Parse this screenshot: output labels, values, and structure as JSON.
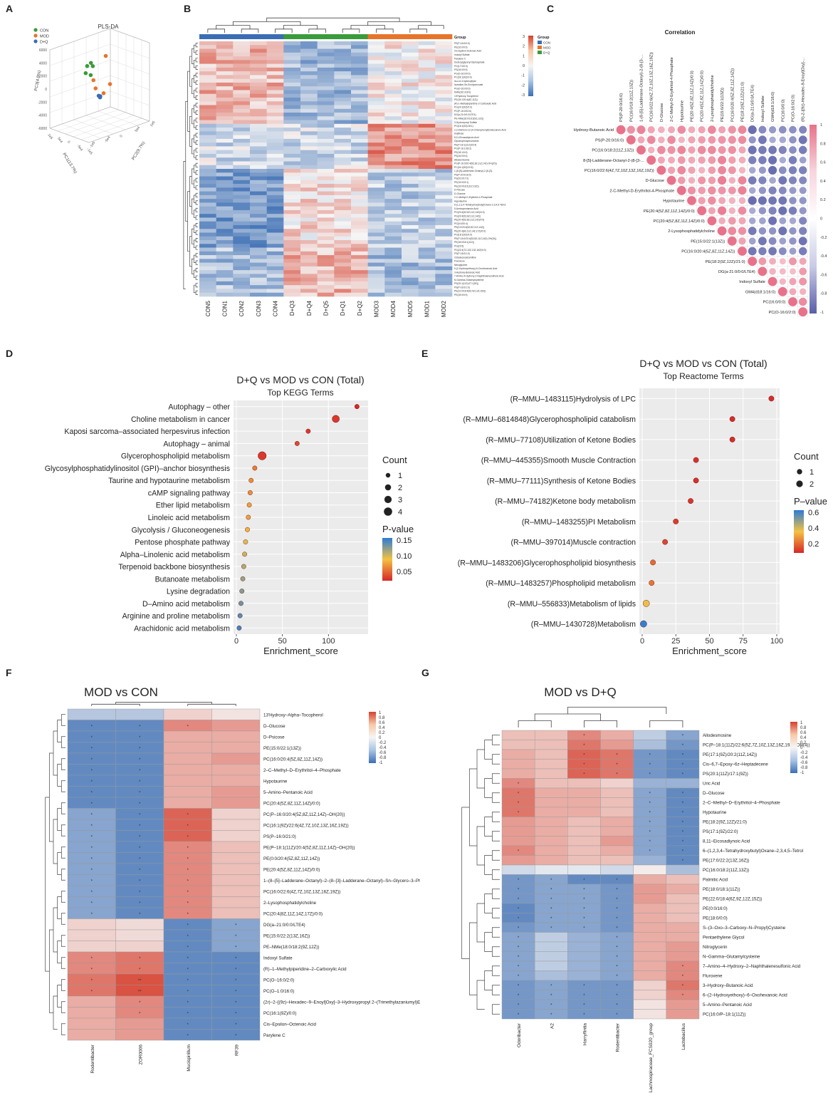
{
  "colors": {
    "blue": "#3a6db5",
    "orange": "#e8742a",
    "green": "#3a9b3a",
    "heat_lo": "#3d6fb4",
    "heat_mid": "#f5f5f5",
    "heat_hi": "#d6402e",
    "corr_pos": "#e8728a",
    "corr_neg": "#5a5fa8",
    "pv_lo": "#d62728",
    "pv_mid": "#f5c242",
    "pv_hi": "#2b7bd6"
  },
  "panel_letters": [
    "A",
    "B",
    "C",
    "D",
    "E",
    "F",
    "G"
  ],
  "panelA": {
    "title": "PLS-DA",
    "legend": [
      {
        "label": "CON",
        "color": "#3a9b3a"
      },
      {
        "label": "MOD",
        "color": "#e8742a"
      },
      {
        "label": "D+Q",
        "color": "#3a6db5"
      }
    ],
    "zlabel": "PC3(4.8%)",
    "xlabel": "PC1(13.7%)",
    "ylabel": "PC2(9.7%)",
    "zticks": [
      "6000",
      "4000",
      "2000",
      "0",
      "-2000",
      "-4000",
      "-6000"
    ],
    "xticks": [
      "-1e5",
      "-5e4",
      "0",
      "5e4",
      "1e5"
    ],
    "yticks": [
      "-1e5",
      "-5e4",
      "0",
      "5e4",
      "1e5"
    ],
    "points": [
      {
        "group": "CON",
        "x": 0.8,
        "y": 0.55,
        "z": 0.72
      },
      {
        "group": "CON",
        "x": 0.78,
        "y": 0.45,
        "z": 0.62
      },
      {
        "group": "CON",
        "x": 0.83,
        "y": 0.6,
        "z": 0.66
      },
      {
        "group": "CON",
        "x": 0.76,
        "y": 0.52,
        "z": 0.58
      },
      {
        "group": "CON",
        "x": 0.82,
        "y": 0.5,
        "z": 0.69
      },
      {
        "group": "MOD",
        "x": 0.35,
        "y": 0.3,
        "z": 0.65
      },
      {
        "group": "MOD",
        "x": 0.5,
        "y": 0.6,
        "z": 0.85
      },
      {
        "group": "MOD",
        "x": 0.4,
        "y": 0.5,
        "z": 0.42
      },
      {
        "group": "MOD",
        "x": 0.7,
        "y": 0.8,
        "z": 0.4
      },
      {
        "group": "MOD",
        "x": 0.45,
        "y": 0.4,
        "z": 0.5
      },
      {
        "group": "D+Q",
        "x": 0.5,
        "y": 0.5,
        "z": 0.36
      },
      {
        "group": "D+Q",
        "x": 0.52,
        "y": 0.52,
        "z": 0.35
      },
      {
        "group": "D+Q",
        "x": 0.51,
        "y": 0.49,
        "z": 0.37
      },
      {
        "group": "D+Q",
        "x": 0.49,
        "y": 0.5,
        "z": 0.35
      },
      {
        "group": "D+Q",
        "x": 0.5,
        "y": 0.51,
        "z": 0.36
      }
    ]
  },
  "panelB": {
    "group_label": "Group",
    "legend_groups": [
      {
        "label": "CON",
        "color": "#3a6db5"
      },
      {
        "label": "MOD",
        "color": "#e8742a"
      },
      {
        "label": "D+Q",
        "color": "#3a9b3a"
      }
    ],
    "scale_ticks": [
      "3",
      "2",
      "1",
      "0",
      "-1",
      "-2",
      "-3"
    ],
    "samples": [
      "CON5",
      "CON1",
      "CON2",
      "CON3",
      "CON4",
      "D+Q3",
      "D+Q4",
      "D+Q5",
      "D+Q1",
      "D+Q2",
      "MOD3",
      "MOD4",
      "MOD5",
      "MOD1",
      "MOD2"
    ],
    "sample_groups": [
      "CON",
      "CON",
      "CON",
      "CON",
      "CON",
      "D+Q",
      "D+Q",
      "D+Q",
      "D+Q",
      "D+Q",
      "MOD",
      "MOD",
      "MOD",
      "MOD",
      "MOD"
    ],
    "rows": [
      "PE(P-16:0/0:0)",
      "PE(16:0/0:0)",
      "Cis-Epsilon-Octenoic Acid",
      "Indoxyl Sulfate",
      "Parylene C",
      "Dodecylglyceryl Diphosphate",
      "PG(17:0/0:0)",
      "PS(16:0/0:0)",
      "PG(O-16:0/0:0)",
      "PC(18:1(9Z)/0:0)",
      "Iso-Lit-3-hydroxylipid",
      "Isovaline-Se-Enciopercoate",
      "PG(O-16:0/0:0)",
      "DMA(18:1/18:0)",
      "13'Hydroxy-Tocopherol",
      "PE(18:1/20:4(8Z,11Z))",
      "(R)-1-Methylpiperidine-2-Carboxylic Acid",
      "PG(20:1(9Z)/0:0)",
      "PG(P-16:0/22:6)",
      "DG(a-21:0/0:0/LTE4)",
      "PE-NMe(18:0/18:2(9Z,12Z))",
      "3-Hydroxyoxyl Sulfate",
      "PG(16:1(9Z)/18:1)",
      "2,2-Dichloro-12-(4-Chlorophenyl)Dodecanoic Acid",
      "Kojibiose",
      "8,11-Eicosadiynoic Acid",
      "Glycerophosphocholine",
      "PE(P-18:1(11Z)/20:4)",
      "PG(P-16:1/18:2)",
      "PE(18:1/0:0)",
      "PS(16:0/0:0)",
      "Allodesmosine",
      "PG(P-16:0/20:4(5Z,8Z,11Z,14Z)-OH(20))",
      "PC(16:1(9Z)/22:6)",
      "1-(8-[5]-Ladderane-Octanyl)-2-(8-[3]-",
      "PS(P-20:0/16:0)",
      "PS(20:0/17:0)",
      "PE(15:0/22:1)",
      "PE(16:0/18:2(11Z,13Z))",
      "D-Psicose",
      "D-Glucose",
      "2-C-Methyl-D-Erythritol-4-Phosphate",
      "Hypotaurine",
      "6-(1,2,3,4-Tetrahydroxybutyl)Oxane-2,3,4,5-Tetrol",
      "5-Aminopentanoic Acid",
      "PG(20:4(5Z,8Z,11Z,14Z)/0:0)",
      "PG(20:4(5Z,8Z,11Z,14Z))",
      "PE(20:4(5Z,8Z,11Z,14Z)/0:0)",
      "PG(0:0/20:4)",
      "PE(0:0/20:4(5Z,8Z,11Z,14Z))",
      "PE(20:4(8Z,11Z,14Z,17Z)/0:0)",
      "PG(18:1(9Z)/0:0)",
      "PE(P-16:0/20:4(5Z,8Z,11Z,14Z)-OH(20))",
      "PE(18:0/18:1(11Z))",
      "PG(22:6)",
      "PG(22:4(7Z,10Z,13Z,16Z)/0:0)",
      "PS(P-18:0/1:0)",
      "Octadecenylcarnitine",
      "Fluroxene",
      "Nitroglycerin",
      "5-(2-Hydroxyethoxy)-6-Oxohexanoic Acid",
      "3-Hydroxy-Butanoic Acid",
      "7-Amino-4-Hydroxy-2-Naphthalenesulfonic Acid",
      "N-Gamma-Glutamylcysteine",
      "PS(20:1(11Z)/17:1(9Z))",
      "PS(P-18:0/1:0)",
      "PE(22:0/18:4(6Z,9Z,12Z,15Z))",
      "PE(18:0/0:0)"
    ]
  },
  "panelC": {
    "title": "Correlation",
    "labels": [
      "Hydroxy-Butanoic Acid",
      "PS(P-20:0/16:0)",
      "PC(16:0/18:2(11Z,13Z))",
      "8-[5]-Ladderane-Octanyl-2-(8-[3-...",
      "PC(16:0/22:6(4Z,7Z,10Z,13Z,16Z,19Z))",
      "D-Glucose",
      "2-C-Methyl-D-Erythritol-4-Phosphate",
      "Hypotaurine",
      "PE(20:4(5Z,8Z,11Z,14Z)/0:0)",
      "PC(20:4(5Z,8Z,11Z,14Z)/0:0)",
      "2-Lysophosphatidylcholine",
      "PE(15:0/22:1(13Z))",
      "PC(16:0/20:4(5Z,8Z,11Z,14Z))",
      "PE(18:2(9Z,12Z)/21:0)",
      "DG(a-21:0/0:0/LTE4)",
      "Indoxyl Sulfate",
      "GM4(d18:1/16:0)",
      "PC(16:0/0:0)",
      "PC(O-16:0/2:0)"
    ],
    "top_labels": [
      "PS(P-20:0/16:0)",
      "PC(16:0/18:2(11Z,13Z))",
      "1-(8-[5]-Ladderane-Octanyl)-2-(8-[3-...",
      "PC(16:0/22:6(4Z,7Z,10Z,13Z,16Z,19Z))",
      "D-Glucose",
      "2-C-Methyl-D-Erythritol-4-Phosphate",
      "Hypotaurine",
      "PE(20:4(5Z,8Z,11Z,14Z)/0:0)",
      "PC(20:4(5Z,8Z,11Z,14Z)/0:0)",
      "2-Lysophosphatidylcholine",
      "PE(15:0/22:1(13Z))",
      "PC(16:0/20:4(5Z,8Z,11Z,14Z))",
      "PE(18:2(9Z,12Z)/21:0)",
      "DG(a-21:0/0:0/LTE4)",
      "Indoxyl Sulfate",
      "GM4(d18:1/16:0)",
      "PC(16:0/0:0)",
      "PC(O-16:0/2:0)",
      "(R)-2-[(9z)-Hexadec-9-Enoyl]Oxy]-..."
    ],
    "scale_ticks": [
      "1",
      "0.8",
      "0.6",
      "0.4",
      "0.2",
      "0",
      "-0.2",
      "-0.4",
      "-0.6",
      "-0.8",
      "-1"
    ]
  },
  "panelD": {
    "title": "D+Q vs MOD vs CON (Total)",
    "subtitle": "Top KEGG Terms",
    "xlabel": "Enrichment_score",
    "xticks": [
      0,
      50,
      100
    ],
    "xmax": 140,
    "legend_count_title": "Count",
    "count_levels": [
      1,
      2,
      3,
      4
    ],
    "legend_p_title": "P-value",
    "p_ticks": [
      "0.15",
      "0.10",
      "0.05"
    ],
    "p_range": [
      0.01,
      0.19
    ],
    "chart_data": {
      "type": "scatter",
      "terms": [
        "Autophagy – other",
        "Choline metabolism in cancer",
        "Kaposi sarcoma–associated herpesvirus infection",
        "Autophagy – animal",
        "Glycerophospholipid metabolism",
        "Glycosylphosphatidylinositol (GPI)–anchor biosynthesis",
        "Taurine and hypotaurine metabolism",
        "cAMP signaling pathway",
        "Ether lipid metabolism",
        "Linoleic acid metabolism",
        "Glycolysis / Gluconeogenesis",
        "Pentose phosphate pathway",
        "Alpha–Linolenic acid metabolism",
        "Terpenoid backbone biosynthesis",
        "Butanoate metabolism",
        "Lysine degradation",
        "D–Amino acid metabolism",
        "Arginine and proline metabolism",
        "Arachidonic acid metabolism"
      ],
      "enrichment": [
        131,
        108,
        78,
        66,
        28,
        20,
        16,
        15,
        14,
        13,
        12,
        10,
        9,
        8,
        7,
        6,
        5,
        4,
        3
      ],
      "count": [
        1,
        3,
        1,
        1,
        4,
        1,
        1,
        1,
        1,
        1,
        1,
        1,
        1,
        1,
        1,
        1,
        1,
        1,
        1
      ],
      "pvalue": [
        0.01,
        0.02,
        0.02,
        0.03,
        0.02,
        0.06,
        0.07,
        0.07,
        0.08,
        0.08,
        0.09,
        0.11,
        0.12,
        0.13,
        0.14,
        0.15,
        0.16,
        0.17,
        0.18
      ]
    }
  },
  "panelE": {
    "title": "D+Q vs MOD vs CON (Total)",
    "subtitle": "Top Reactome Terms",
    "xlabel": "Enrichment_score",
    "xticks": [
      0,
      25,
      50,
      75,
      100
    ],
    "xmax": 100,
    "legend_count_title": "Count",
    "count_levels": [
      1,
      2
    ],
    "legend_p_title": "P–value",
    "p_ticks": [
      "0.6",
      "0.4",
      "0.2"
    ],
    "p_range": [
      0.05,
      0.72
    ],
    "chart_data": {
      "type": "scatter",
      "terms": [
        "(R–MMU–1483115)Hydrolysis of LPC",
        "(R–MMU–6814848)Glycerophospholipid catabolism",
        "(R–MMU–77108)Utilization of Ketone Bodies",
        "(R–MMU–445355)Smooth Muscle Contraction",
        "(R–MMU–77111)Synthesis of Ketone Bodies",
        "(R–MMU–74182)Ketone body metabolism",
        "(R–MMU–1483255)PI Metabolism",
        "(R–MMU–397014)Muscle contraction",
        "(R–MMU–1483206)Glycerophospholipid biosynthesis",
        "(R–MMU–1483257)Phospholipid metabolism",
        "(R–MMU–556833)Metabolism of lipids",
        "(R–MMU–1430728)Metabolism"
      ],
      "enrichment": [
        96,
        67,
        67,
        40,
        40,
        36,
        25,
        17,
        8,
        7,
        3,
        1
      ],
      "count": [
        1,
        1,
        1,
        1,
        1,
        1,
        1,
        1,
        1,
        1,
        2,
        2
      ],
      "pvalue": [
        0.06,
        0.06,
        0.06,
        0.07,
        0.07,
        0.08,
        0.1,
        0.12,
        0.2,
        0.22,
        0.4,
        0.7
      ]
    }
  },
  "panelF": {
    "title": "MOD vs CON",
    "columns": [
      "Rodentibacter",
      "ZOR0006",
      "Mucispirillum",
      "RF39"
    ],
    "rows": [
      "13'Hydroxy–Alpha–Tocopherol",
      "D–Glucose",
      "D–Psicose",
      "PE(15:0/22:1(13Z))",
      "PC(16:0/20:4(5Z,8Z,11Z,14Z))",
      "2–C–Methyl–D–Erythritol–4–Phosphate",
      "Hypotaurine",
      "5–Amino–Pentanoic Acid",
      "PC(20:4(5Z,8Z,11Z,14Z)/0:0)",
      "PC(P–16:0/20:4(5Z,8Z,11Z,14Z)–OH(20))",
      "PC(16:1(9Z)/22:6(4Z,7Z,10Z,13Z,16Z,19Z))",
      "PS(P–16:0/21:0)",
      "PE(P–18:1(11Z)/20:4(5Z,8Z,11Z,14Z)–OH(20))",
      "PE(0:0/20:4(5Z,8Z,11Z,14Z))",
      "PE(20:4(5Z,8Z,11Z,14Z)/0:0)",
      "1–(8–[5]–Ladderane–Octanyl)–2–(8–[3]–Ladderane–Octanyl)–Sn–Glycero–3–Phosphocholine",
      "PC(16:0/22:6(4Z,7Z,10Z,13Z,16Z,19Z))",
      "2–Lysophosphatidylcholine",
      "PC(20:4(8Z,11Z,14Z,17Z)/0:0)",
      "DG(a–21:0/0:0/LTE4)",
      "PE(15:0/22:2(13Z,16Z))",
      "PE–NMe(18:0/18:2(9Z,12Z))",
      "Indoxyl Sulfate",
      "(R)–1–Methylpiperidine–2–Carboxylic Acid",
      "PC(O–16:0/2:0)",
      "PC(O–1:0/16:0)",
      "(2r)–2–[(9z)–Hexadec–9–Enoyl]Oxy]–3–Hydroxypropyl 2–(Trimethylazaniumyl)Ethyl Phosphate",
      "PC(16:1(9Z)/0:0)",
      "Cis–Epsilon–Octenoic Acid",
      "Parylene C"
    ],
    "values": [
      [
        -0.35,
        -0.35,
        0.2,
        0.1
      ],
      [
        -0.8,
        -0.8,
        0.6,
        0.5
      ],
      [
        -0.8,
        -0.8,
        0.4,
        0.4
      ],
      [
        -0.8,
        -0.8,
        0.4,
        0.4
      ],
      [
        -0.8,
        -0.8,
        0.4,
        0.5
      ],
      [
        -0.8,
        -0.8,
        0.4,
        0.4
      ],
      [
        -0.8,
        -0.8,
        0.4,
        0.4
      ],
      [
        -0.8,
        -0.8,
        0.4,
        0.5
      ],
      [
        -0.8,
        -0.8,
        0.4,
        0.5
      ],
      [
        -0.6,
        -0.8,
        0.8,
        0.2
      ],
      [
        -0.6,
        -0.8,
        0.8,
        0.2
      ],
      [
        -0.6,
        -0.8,
        0.8,
        0.2
      ],
      [
        -0.6,
        -0.8,
        0.6,
        0.3
      ],
      [
        -0.6,
        -0.8,
        0.6,
        0.3
      ],
      [
        -0.6,
        -0.8,
        0.6,
        0.3
      ],
      [
        -0.6,
        -0.8,
        0.6,
        0.3
      ],
      [
        -0.6,
        -0.8,
        0.6,
        0.3
      ],
      [
        -0.6,
        -0.8,
        0.6,
        0.3
      ],
      [
        -0.6,
        -0.8,
        0.6,
        0.3
      ],
      [
        0.2,
        0.15,
        -0.8,
        -0.6
      ],
      [
        0.2,
        0.15,
        -0.8,
        -0.6
      ],
      [
        0.2,
        0.2,
        -0.8,
        -0.6
      ],
      [
        0.6,
        0.7,
        -0.8,
        -0.8
      ],
      [
        0.6,
        0.7,
        -0.8,
        -0.8
      ],
      [
        0.7,
        0.9,
        -0.8,
        -0.8
      ],
      [
        0.7,
        0.9,
        -0.8,
        -0.8
      ],
      [
        0.4,
        0.6,
        -0.8,
        -0.8
      ],
      [
        0.4,
        0.6,
        -0.8,
        -0.8
      ],
      [
        0.4,
        0.5,
        -0.8,
        -0.8
      ],
      [
        0.4,
        0.5,
        -0.8,
        -0.8
      ]
    ],
    "scale_ticks": [
      "1",
      "0.8",
      "0.6",
      "0.4",
      "0.2",
      "0",
      "-0.2",
      "-0.4",
      "-0.6",
      "-0.8",
      "-1"
    ]
  },
  "panelG": {
    "title": "MOD vs D+Q",
    "columns": [
      "Odoribacter",
      "A2",
      "Harryflintia",
      "Rodentibacter",
      "Lachnospiraceae_FCS020_group",
      "Lactobacillus"
    ],
    "rows": [
      "Allodesmosine",
      "PC(P–18:1(11Z)/22:6(5Z,7Z,10Z,13Z,16Z,19Z)–OH(4))",
      "PE(17:1(9Z)/20:2(11Z,14Z))",
      "Cis–6,7–Epoxy–6z–Heptadecene",
      "PS(20:1(11Z)/17:1(9Z))",
      "Uric Acid",
      "D–Glucose",
      "2–C–Methyl–D–Erythritol–4–Phosphate",
      "Hypotaurine",
      "PE(18:2(9Z,12Z)/21:0)",
      "PS(17:1(9Z)/22:0)",
      "8,11–Eicosadiynoic Acid",
      "6–(1,2,3,4–Tetrahydroxybutyl)Oxane–2,3,4,5–Tetrol",
      "PE(17:0/22:2(13Z,16Z))",
      "PC(16:0/18:2(11Z,13Z))",
      "Palmitic Acid",
      "PE(18:0/18:1(11Z))",
      "PE(22:0/18:4(6Z,9Z,12Z,15Z))",
      "PE(0:0/16:0)",
      "PE(18:0/0:0)",
      "S–(3–Oxo–3–Carboxy–N–Propyl)Cysteine",
      "Pentaethylene Glycol",
      "Nitroglycerin",
      "N–Gamma–Glutamylcysteine",
      "7–Amino–4–Hydroxy–2–Naphthalenesulfonic Acid",
      "Fluroxene",
      "3–Hydroxy–Butanoic Acid",
      "6–(2–Hydroxyethoxy)–6–Oxohexanoic Acid",
      "5–Amino–Pentanoic Acid",
      "PC(16:0/P–18:1(11Z))"
    ],
    "values": [
      [
        0.3,
        0.3,
        0.6,
        0.4,
        -0.3,
        -0.6
      ],
      [
        0.3,
        0.3,
        0.7,
        0.5,
        -0.4,
        -0.7
      ],
      [
        0.4,
        0.3,
        0.8,
        0.7,
        -0.7,
        -0.8
      ],
      [
        0.4,
        0.3,
        0.8,
        0.7,
        -0.7,
        -0.8
      ],
      [
        0.4,
        0.3,
        0.8,
        0.7,
        -0.7,
        -0.8
      ],
      [
        0.6,
        0.3,
        0.3,
        0.2,
        -0.5,
        -0.5
      ],
      [
        0.7,
        0.4,
        0.4,
        0.3,
        -0.6,
        -0.8
      ],
      [
        0.7,
        0.4,
        0.4,
        0.3,
        -0.6,
        -0.8
      ],
      [
        0.7,
        0.4,
        0.4,
        0.3,
        -0.6,
        -0.8
      ],
      [
        0.5,
        0.4,
        0.3,
        0.4,
        -0.6,
        -0.8
      ],
      [
        0.5,
        0.4,
        0.3,
        0.4,
        -0.6,
        -0.8
      ],
      [
        0.5,
        0.4,
        0.3,
        0.5,
        -0.6,
        -0.8
      ],
      [
        0.6,
        0.4,
        0.3,
        0.4,
        -0.6,
        -0.8
      ],
      [
        0.5,
        0.4,
        0.3,
        0.3,
        -0.5,
        -0.8
      ],
      [
        -0.2,
        -0.1,
        -0.1,
        -0.2,
        0.05,
        -0.4
      ],
      [
        -0.7,
        -0.6,
        -0.8,
        -0.8,
        0.4,
        0.3
      ],
      [
        -0.7,
        -0.6,
        -0.6,
        -0.7,
        0.5,
        0.4
      ],
      [
        -0.7,
        -0.6,
        -0.6,
        -0.7,
        0.5,
        0.3
      ],
      [
        -0.8,
        -0.6,
        -0.6,
        -0.7,
        0.4,
        0.3
      ],
      [
        -0.8,
        -0.6,
        -0.6,
        -0.7,
        0.4,
        0.3
      ],
      [
        -0.7,
        -0.6,
        -0.6,
        -0.7,
        0.4,
        0.4
      ],
      [
        -0.6,
        -0.3,
        -0.5,
        -0.6,
        0.4,
        0.4
      ],
      [
        -0.6,
        -0.3,
        -0.5,
        -0.6,
        0.4,
        0.5
      ],
      [
        -0.6,
        -0.3,
        -0.5,
        -0.6,
        0.4,
        0.5
      ],
      [
        -0.6,
        -0.3,
        -0.5,
        -0.6,
        0.4,
        0.6
      ],
      [
        -0.6,
        -0.4,
        -0.5,
        -0.6,
        0.4,
        0.6
      ],
      [
        -0.7,
        -0.6,
        -0.7,
        -0.7,
        0.2,
        0.7
      ],
      [
        -0.7,
        -0.6,
        -0.7,
        -0.7,
        0.2,
        0.6
      ],
      [
        -0.7,
        -0.6,
        -0.7,
        -0.7,
        0.1,
        0.5
      ],
      [
        -0.7,
        -0.6,
        -0.7,
        -0.7,
        0.1,
        0.5
      ]
    ],
    "scale_ticks": [
      "1",
      "0.8",
      "0.6",
      "0.4",
      "0.2",
      "0",
      "-0.2",
      "-0.4",
      "-0.6",
      "-0.8",
      "-1"
    ]
  }
}
